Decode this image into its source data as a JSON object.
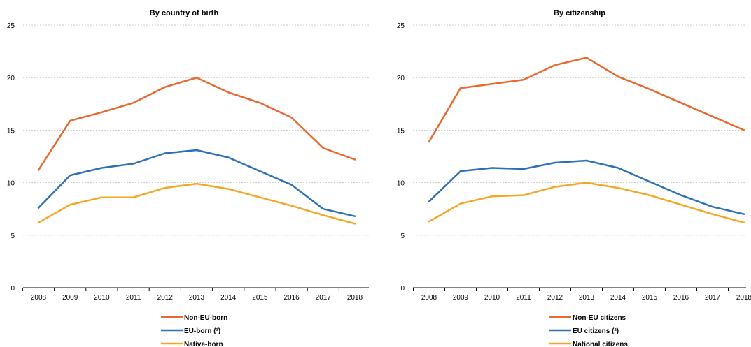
{
  "chart_data": [
    {
      "type": "line",
      "title": "By country of birth",
      "xlabel": "",
      "ylabel": "",
      "ylim": [
        0,
        25
      ],
      "yticks": [
        0,
        5,
        10,
        15,
        20,
        25
      ],
      "grid": true,
      "legend_position": "bottom",
      "x": [
        "2008",
        "2009",
        "2010",
        "2011",
        "2012",
        "2013",
        "2014",
        "2015",
        "2016",
        "2017",
        "2018"
      ],
      "series": [
        {
          "name": "Non-EU-born",
          "color": "#e8692f",
          "values": [
            11.2,
            15.9,
            16.7,
            17.6,
            19.1,
            20.0,
            18.6,
            17.6,
            16.2,
            13.3,
            12.2
          ]
        },
        {
          "name": "EU-born (¹)",
          "color": "#2e70b4",
          "values": [
            7.6,
            10.7,
            11.4,
            11.8,
            12.8,
            13.1,
            12.4,
            11.1,
            9.8,
            7.5,
            6.8
          ]
        },
        {
          "name": "Native-born",
          "color": "#f5a623",
          "values": [
            6.2,
            7.9,
            8.6,
            8.6,
            9.5,
            9.9,
            9.4,
            8.6,
            7.8,
            6.9,
            6.1
          ]
        }
      ]
    },
    {
      "type": "line",
      "title": "By citizenship",
      "xlabel": "",
      "ylabel": "",
      "ylim": [
        0,
        25
      ],
      "yticks": [
        0,
        5,
        10,
        15,
        20,
        25
      ],
      "grid": true,
      "legend_position": "bottom",
      "x": [
        "2008",
        "2009",
        "2010",
        "2011",
        "2012",
        "2013",
        "2014",
        "2015",
        "2016",
        "2017",
        "2018"
      ],
      "series": [
        {
          "name": "Non-EU citizens",
          "color": "#e8692f",
          "values": [
            13.9,
            19.0,
            19.4,
            19.8,
            21.2,
            21.9,
            20.1,
            18.9,
            17.6,
            16.3,
            15.0
          ]
        },
        {
          "name": "EU citizens (²)",
          "color": "#2e70b4",
          "values": [
            8.2,
            11.1,
            11.4,
            11.3,
            11.9,
            12.1,
            11.4,
            10.1,
            8.8,
            7.7,
            7.0
          ]
        },
        {
          "name": "National citizens",
          "color": "#f5a623",
          "values": [
            6.3,
            8.0,
            8.7,
            8.8,
            9.6,
            10.0,
            9.5,
            8.8,
            7.9,
            7.0,
            6.2
          ]
        }
      ]
    }
  ]
}
